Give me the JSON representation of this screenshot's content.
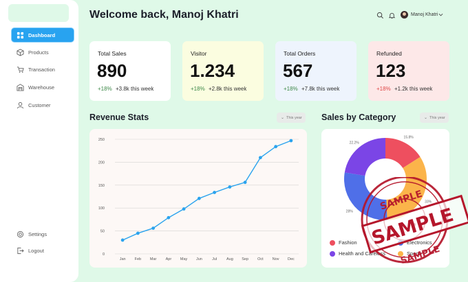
{
  "sidebar": {
    "items": [
      {
        "label": "Dashboard",
        "icon": "grid-icon",
        "active": true
      },
      {
        "label": "Products",
        "icon": "box-icon"
      },
      {
        "label": "Transaction",
        "icon": "cart-icon"
      },
      {
        "label": "Warehouse",
        "icon": "warehouse-icon"
      },
      {
        "label": "Customer",
        "icon": "user-icon"
      }
    ],
    "bottom": [
      {
        "label": "Settings",
        "icon": "gear-icon"
      },
      {
        "label": "Logout",
        "icon": "logout-icon"
      }
    ]
  },
  "header": {
    "title": "Welcome back, Manoj Khatri",
    "user_name": "Manoj Khatri"
  },
  "stats": [
    {
      "label": "Total Sales",
      "value": "890",
      "pct": "+18%",
      "week": "+3.8k this week",
      "bg": "#ffffff",
      "pct_color": "#3f8a4a"
    },
    {
      "label": "Visitor",
      "value": "1.234",
      "pct": "+18%",
      "week": "+2.8k this week",
      "bg": "#fbfde0",
      "pct_color": "#3f8a4a"
    },
    {
      "label": "Total Orders",
      "value": "567",
      "pct": "+18%",
      "week": "+7.8k this week",
      "bg": "#eef4fd",
      "pct_color": "#3f8a4a"
    },
    {
      "label": "Refunded",
      "value": "123",
      "pct": "+18%",
      "week": "+1.2k this week",
      "bg": "#fde8e8",
      "pct_color": "#e04848"
    }
  ],
  "revenue": {
    "title": "Revenue Stats",
    "period": "This year"
  },
  "category": {
    "title": "Sales by Category",
    "period": "This year"
  },
  "chart_data": [
    {
      "type": "line",
      "title": "Revenue Stats",
      "categories": [
        "Jan",
        "Feb",
        "Mar",
        "Apr",
        "May",
        "Jun",
        "Jul",
        "Aug",
        "Sep",
        "Oct",
        "Nov",
        "Dec"
      ],
      "values": [
        30,
        45,
        56,
        79,
        98,
        121,
        134,
        146,
        156,
        210,
        234,
        247
      ],
      "yticks": [
        "0",
        "50",
        "100",
        "150",
        "200",
        "250"
      ],
      "ylim": [
        0,
        250
      ],
      "grid": true,
      "color": "#2aa3ee"
    },
    {
      "type": "pie",
      "title": "Sales by Category",
      "donut": true,
      "slices": [
        {
          "name": "Fashion",
          "value": 15.8,
          "label": "15.8%",
          "color": "#ee4f5f"
        },
        {
          "name": "Electronics",
          "value": 28.0,
          "label": "28%",
          "color": "#4f6fe8"
        },
        {
          "name": "Health and Careless",
          "value": 22.2,
          "label": "22.2%",
          "color": "#7b45e6"
        },
        {
          "name": "Sports",
          "value": 33.0,
          "label": "33%",
          "color": "#fbb44a"
        }
      ]
    }
  ],
  "legend": [
    "Fashion",
    "Electronics",
    "Health and Careless",
    "Sports"
  ],
  "stamp": {
    "text": "SAMPLE"
  }
}
